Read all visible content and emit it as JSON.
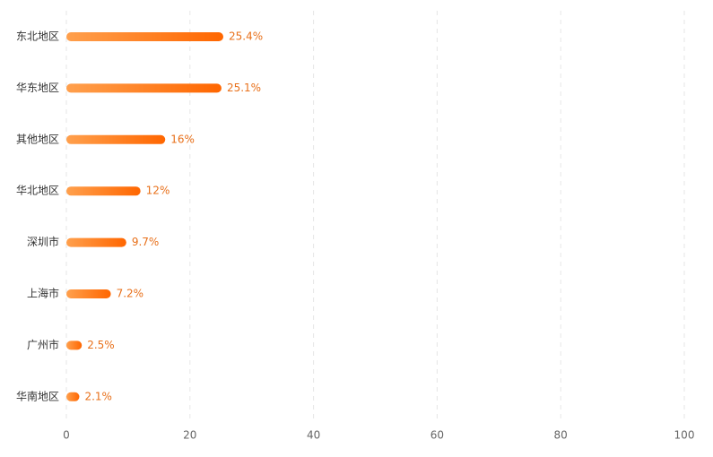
{
  "chart_data": {
    "type": "bar",
    "orientation": "horizontal",
    "categories": [
      "东北地区",
      "华东地区",
      "其他地区",
      "华北地区",
      "深圳市",
      "上海市",
      "广州市",
      "华南地区"
    ],
    "values": [
      25.4,
      25.1,
      16,
      12,
      9.7,
      7.2,
      2.5,
      2.1
    ],
    "value_labels": [
      "25.4%",
      "25.1%",
      "16%",
      "12%",
      "9.7%",
      "7.2%",
      "2.5%",
      "2.1%"
    ],
    "gradient": [
      "#ffa04d",
      "#ff6600"
    ],
    "label_color": "#e8701a",
    "xlim": [
      0,
      100
    ],
    "xticks": [
      0,
      20,
      40,
      60,
      80,
      100
    ],
    "grid": true
  }
}
